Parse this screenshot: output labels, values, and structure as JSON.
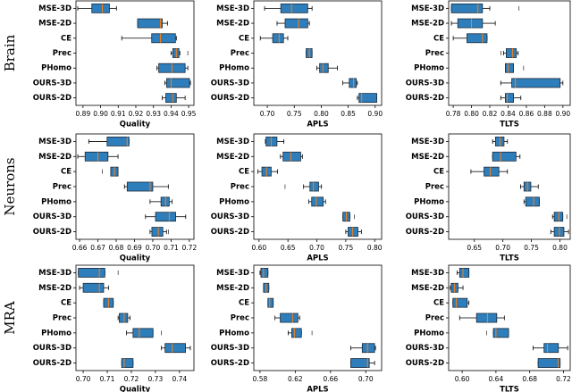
{
  "row_labels": [
    "Brain",
    "Neurons",
    "MRA"
  ],
  "chart_data": [
    {
      "type": "box",
      "xlabel": "Quality",
      "color": "#2e7ebc",
      "median_color": "#ff7f0e",
      "categories": [
        "MSE-3D",
        "MSE-2D",
        "CE",
        "Prec",
        "PHomo",
        "OURS-3D",
        "OURS-2D"
      ],
      "xlim": [
        0.886,
        0.953
      ],
      "xticks": [
        0.89,
        {
          "value": 0.9,
          "label": "0.90"
        },
        0.91,
        0.92,
        0.93,
        0.94,
        0.95
      ],
      "boxes": [
        {
          "whislo": 0.887,
          "q1": 0.895,
          "med": 0.901,
          "q3": 0.905,
          "whishi": 0.909
        },
        {
          "whislo": 0.921,
          "q1": 0.921,
          "med": 0.934,
          "q3": 0.935,
          "whishi": 0.938
        },
        {
          "whislo": 0.912,
          "q1": 0.929,
          "med": 0.934,
          "q3": 0.9425,
          "whishi": 0.943
        },
        {
          "whislo": 0.94,
          "q1": 0.941,
          "med": 0.943,
          "q3": 0.9445,
          "whishi": 0.945,
          "fliers": [
            0.9495
          ]
        },
        {
          "whislo": 0.932,
          "q1": 0.933,
          "med": 0.9405,
          "q3": 0.948,
          "whishi": 0.9495
        },
        {
          "whislo": 0.9365,
          "q1": 0.9375,
          "med": 0.94,
          "q3": 0.9505,
          "whishi": 0.951
        },
        {
          "whislo": 0.935,
          "q1": 0.937,
          "med": 0.941,
          "q3": 0.943,
          "whishi": 0.948
        }
      ]
    },
    {
      "type": "box",
      "xlabel": "APLS",
      "color": "#2e7ebc",
      "median_color": "#ff7f0e",
      "categories": [
        "MSE-3D",
        "MSE-2D",
        "CE",
        "Prec",
        "PHomo",
        "OURS-3D",
        "OURS-2D"
      ],
      "xlim": [
        0.675,
        0.912
      ],
      "xticks": [
        {
          "value": 0.7,
          "label": "0.70"
        },
        0.75,
        {
          "value": 0.8,
          "label": "0.80"
        },
        0.85,
        {
          "value": 0.9,
          "label": "0.90"
        }
      ],
      "boxes": [
        {
          "whislo": 0.695,
          "q1": 0.725,
          "med": 0.745,
          "q3": 0.775,
          "whishi": 0.783
        },
        {
          "whislo": 0.718,
          "q1": 0.733,
          "med": 0.758,
          "q3": 0.775,
          "whishi": 0.778
        },
        {
          "whislo": 0.687,
          "q1": 0.71,
          "med": 0.722,
          "q3": 0.73,
          "whishi": 0.738
        },
        {
          "whislo": 0.772,
          "q1": 0.772,
          "med": 0.778,
          "q3": 0.783,
          "whishi": 0.783
        },
        {
          "whislo": 0.792,
          "q1": 0.797,
          "med": 0.803,
          "q3": 0.813,
          "whishi": 0.83
        },
        {
          "whislo": 0.84,
          "q1": 0.852,
          "med": 0.86,
          "q3": 0.865,
          "whishi": 0.867
        },
        {
          "whislo": 0.867,
          "q1": 0.87,
          "med": 0.875,
          "q3": 0.903,
          "whishi": 0.903
        }
      ]
    },
    {
      "type": "box",
      "xlabel": "TLTS",
      "color": "#2e7ebc",
      "median_color": "#ff7f0e",
      "categories": [
        "MSE-3D",
        "MSE-2D",
        "CE",
        "Prec",
        "PHomo",
        "OURS-3D",
        "OURS-2D"
      ],
      "xlim": [
        0.775,
        0.908
      ],
      "xticks": [
        0.78,
        {
          "value": 0.8,
          "label": "0.80"
        },
        0.82,
        0.84,
        0.86,
        0.88,
        {
          "value": 0.9,
          "label": "0.90"
        }
      ],
      "boxes": [
        {
          "whislo": 0.778,
          "q1": 0.778,
          "med": 0.807,
          "q3": 0.812,
          "whishi": 0.82,
          "fliers": [
            0.852
          ]
        },
        {
          "whislo": 0.778,
          "q1": 0.785,
          "med": 0.8,
          "q3": 0.812,
          "whishi": 0.826
        },
        {
          "whislo": 0.78,
          "q1": 0.795,
          "med": 0.812,
          "q3": 0.817,
          "whishi": 0.817
        },
        {
          "whislo": 0.835,
          "q1": 0.838,
          "med": 0.845,
          "q3": 0.849,
          "whishi": 0.851,
          "fliers": [
            0.832
          ]
        },
        {
          "whislo": 0.837,
          "q1": 0.837,
          "med": 0.84,
          "q3": 0.846,
          "whishi": 0.846,
          "fliers": [
            0.857
          ]
        },
        {
          "whislo": 0.832,
          "q1": 0.844,
          "med": 0.848,
          "q3": 0.897,
          "whishi": 0.9
        },
        {
          "whislo": 0.832,
          "q1": 0.837,
          "med": 0.839,
          "q3": 0.846,
          "whishi": 0.854
        }
      ]
    },
    {
      "type": "box",
      "xlabel": "Quality",
      "color": "#2e7ebc",
      "median_color": "#ff7f0e",
      "categories": [
        "MSE-3D",
        "MSE-2D",
        "CE",
        "Prec",
        "PHomo",
        "OURS-3D",
        "OURS-2D"
      ],
      "xlim": [
        0.658,
        0.7225
      ],
      "xticks": [
        0.66,
        0.67,
        0.68,
        0.69,
        {
          "value": 0.7,
          "label": "0.70"
        },
        0.71,
        0.72
      ],
      "boxes": [
        {
          "whislo": 0.665,
          "q1": 0.675,
          "med": 0.686,
          "q3": 0.687,
          "whishi": 0.687
        },
        {
          "whislo": 0.659,
          "q1": 0.663,
          "med": 0.67,
          "q3": 0.6755,
          "whishi": 0.681
        },
        {
          "whislo": 0.677,
          "q1": 0.677,
          "med": 0.679,
          "q3": 0.681,
          "whishi": 0.681,
          "fliers": [
            0.6725
          ]
        },
        {
          "whislo": 0.6845,
          "q1": 0.686,
          "med": 0.6985,
          "q3": 0.7,
          "whishi": 0.7085
        },
        {
          "whislo": 0.6985,
          "q1": 0.7045,
          "med": 0.707,
          "q3": 0.709,
          "whishi": 0.7105
        },
        {
          "whislo": 0.696,
          "q1": 0.7015,
          "med": 0.709,
          "q3": 0.7125,
          "whishi": 0.718
        },
        {
          "whislo": 0.6985,
          "q1": 0.6995,
          "med": 0.703,
          "q3": 0.7055,
          "whishi": 0.7075,
          "fliers": [
            0.7085
          ]
        }
      ]
    },
    {
      "type": "box",
      "xlabel": "APLS",
      "color": "#2e7ebc",
      "median_color": "#ff7f0e",
      "categories": [
        "MSE-3D",
        "MSE-2D",
        "CE",
        "Prec",
        "PHomo",
        "OURS-3D",
        "OURS-2D"
      ],
      "xlim": [
        0.591,
        0.812
      ],
      "xticks": [
        {
          "value": 0.6,
          "label": "0.60"
        },
        0.65,
        {
          "value": 0.7,
          "label": "0.70"
        },
        0.75,
        {
          "value": 0.8,
          "label": "0.80"
        }
      ],
      "boxes": [
        {
          "whislo": 0.611,
          "q1": 0.612,
          "med": 0.621,
          "q3": 0.631,
          "whishi": 0.643
        },
        {
          "whislo": 0.637,
          "q1": 0.6415,
          "med": 0.655,
          "q3": 0.672,
          "whishi": 0.675
        },
        {
          "whislo": 0.598,
          "q1": 0.605,
          "med": 0.613,
          "q3": 0.621,
          "whishi": 0.632
        },
        {
          "whislo": 0.677,
          "q1": 0.688,
          "med": 0.694,
          "q3": 0.703,
          "whishi": 0.708,
          "fliers": [
            0.645
          ]
        },
        {
          "whislo": 0.686,
          "q1": 0.691,
          "med": 0.699,
          "q3": 0.711,
          "whishi": 0.715
        },
        {
          "whislo": 0.745,
          "q1": 0.745,
          "med": 0.751,
          "q3": 0.757,
          "whishi": 0.757,
          "fliers": [
            0.765
          ]
        },
        {
          "whislo": 0.75,
          "q1": 0.754,
          "med": 0.762,
          "q3": 0.771,
          "whishi": 0.777
        }
      ]
    },
    {
      "type": "box",
      "xlabel": "TLTS",
      "color": "#2e7ebc",
      "median_color": "#ff7f0e",
      "categories": [
        "MSE-3D",
        "MSE-2D",
        "CE",
        "Prec",
        "PHomo",
        "OURS-3D",
        "OURS-2D"
      ],
      "xlim": [
        0.605,
        0.818
      ],
      "xticks": [
        0.65,
        {
          "value": 0.7,
          "label": "0.70"
        },
        0.75,
        {
          "value": 0.8,
          "label": "0.80"
        }
      ],
      "boxes": [
        {
          "whislo": 0.682,
          "q1": 0.687,
          "med": 0.695,
          "q3": 0.702,
          "whishi": 0.708
        },
        {
          "whislo": 0.682,
          "q1": 0.682,
          "med": 0.696,
          "q3": 0.723,
          "whishi": 0.73
        },
        {
          "whislo": 0.644,
          "q1": 0.667,
          "med": 0.678,
          "q3": 0.693,
          "whishi": 0.708
        },
        {
          "whislo": 0.731,
          "q1": 0.737,
          "med": 0.743,
          "q3": 0.749,
          "whishi": 0.762
        },
        {
          "whislo": 0.737,
          "q1": 0.74,
          "med": 0.754,
          "q3": 0.764,
          "whishi": 0.764
        },
        {
          "whislo": 0.787,
          "q1": 0.79,
          "med": 0.798,
          "q3": 0.805,
          "whishi": 0.805,
          "fliers": [
            0.812
          ]
        },
        {
          "whislo": 0.784,
          "q1": 0.79,
          "med": 0.799,
          "q3": 0.807,
          "whishi": 0.815
        }
      ]
    },
    {
      "type": "box",
      "xlabel": "Quality",
      "color": "#2e7ebc",
      "median_color": "#ff7f0e",
      "categories": [
        "MSE-3D",
        "MSE-2D",
        "CE",
        "Prec",
        "PHomo",
        "OURS-3D",
        "OURS-2D"
      ],
      "xlim": [
        0.697,
        0.746
      ],
      "xticks": [
        {
          "value": 0.7,
          "label": "0.70"
        },
        0.71,
        0.72,
        0.73,
        0.74
      ],
      "boxes": [
        {
          "whislo": 0.698,
          "q1": 0.698,
          "med": 0.7067,
          "q3": 0.709,
          "whishi": 0.709,
          "fliers": [
            0.7145
          ]
        },
        {
          "whislo": 0.6985,
          "q1": 0.7,
          "med": 0.7067,
          "q3": 0.7085,
          "whishi": 0.7105
        },
        {
          "whislo": 0.7085,
          "q1": 0.7085,
          "med": 0.7105,
          "q3": 0.7125,
          "whishi": 0.7125
        },
        {
          "whislo": 0.7145,
          "q1": 0.715,
          "med": 0.717,
          "q3": 0.7185,
          "whishi": 0.7195
        },
        {
          "whislo": 0.718,
          "q1": 0.7207,
          "med": 0.7233,
          "q3": 0.729,
          "whishi": 0.729,
          "fliers": [
            0.7325
          ]
        },
        {
          "whislo": 0.7325,
          "q1": 0.734,
          "med": 0.737,
          "q3": 0.7425,
          "whishi": 0.7445
        },
        {
          "whislo": 0.716,
          "q1": 0.716,
          "med": 0.717,
          "q3": 0.7207,
          "whishi": 0.7207
        }
      ]
    },
    {
      "type": "box",
      "xlabel": "APLS",
      "color": "#2e7ebc",
      "median_color": "#ff7f0e",
      "categories": [
        "MSE-3D",
        "MSE-2D",
        "CE",
        "Prec",
        "PHomo",
        "OURS-3D",
        "OURS-2D"
      ],
      "xlim": [
        0.573,
        0.718
      ],
      "xticks": [
        0.58,
        0.62,
        0.66,
        {
          "value": 0.7,
          "label": "0.70"
        }
      ],
      "boxes": [
        {
          "whislo": 0.58,
          "q1": 0.581,
          "med": 0.584,
          "q3": 0.589,
          "whishi": 0.589
        },
        {
          "whislo": 0.584,
          "q1": 0.584,
          "med": 0.587,
          "q3": 0.59,
          "whishi": 0.59
        },
        {
          "whislo": 0.589,
          "q1": 0.589,
          "med": 0.591,
          "q3": 0.595,
          "whishi": 0.595
        },
        {
          "whislo": 0.597,
          "q1": 0.603,
          "med": 0.617,
          "q3": 0.623,
          "whishi": 0.625
        },
        {
          "whislo": 0.612,
          "q1": 0.616,
          "med": 0.619,
          "q3": 0.627,
          "whishi": 0.627,
          "fliers": [
            0.639
          ]
        },
        {
          "whislo": 0.683,
          "q1": 0.696,
          "med": 0.702,
          "q3": 0.71,
          "whishi": 0.711
        },
        {
          "whislo": 0.683,
          "q1": 0.683,
          "med": 0.702,
          "q3": 0.704,
          "whishi": 0.71
        }
      ]
    },
    {
      "type": "box",
      "xlabel": "TLTS",
      "color": "#2e7ebc",
      "median_color": "#ff7f0e",
      "categories": [
        "MSE-3D",
        "MSE-2D",
        "CE",
        "Prec",
        "PHomo",
        "OURS-3D",
        "OURS-2D"
      ],
      "xlim": [
        0.584,
        0.728
      ],
      "xticks": [
        {
          "value": 0.6,
          "label": "0.60"
        },
        0.64,
        0.68,
        0.72
      ],
      "boxes": [
        {
          "whislo": 0.594,
          "q1": 0.597,
          "med": 0.601,
          "q3": 0.608,
          "whishi": 0.608
        },
        {
          "whislo": 0.586,
          "q1": 0.587,
          "med": 0.591,
          "q3": 0.595,
          "whishi": 0.601
        },
        {
          "whislo": 0.589,
          "q1": 0.589,
          "med": 0.593,
          "q3": 0.606,
          "whishi": 0.608
        },
        {
          "whislo": 0.597,
          "q1": 0.617,
          "med": 0.63,
          "q3": 0.641,
          "whishi": 0.65
        },
        {
          "whislo": 0.637,
          "q1": 0.637,
          "med": 0.64,
          "q3": 0.655,
          "whishi": 0.655,
          "fliers": [
            0.629
          ]
        },
        {
          "whislo": 0.684,
          "q1": 0.697,
          "med": 0.701,
          "q3": 0.714,
          "whishi": 0.725
        },
        {
          "whislo": 0.69,
          "q1": 0.69,
          "med": 0.714,
          "q3": 0.716,
          "whishi": 0.716
        }
      ]
    }
  ]
}
